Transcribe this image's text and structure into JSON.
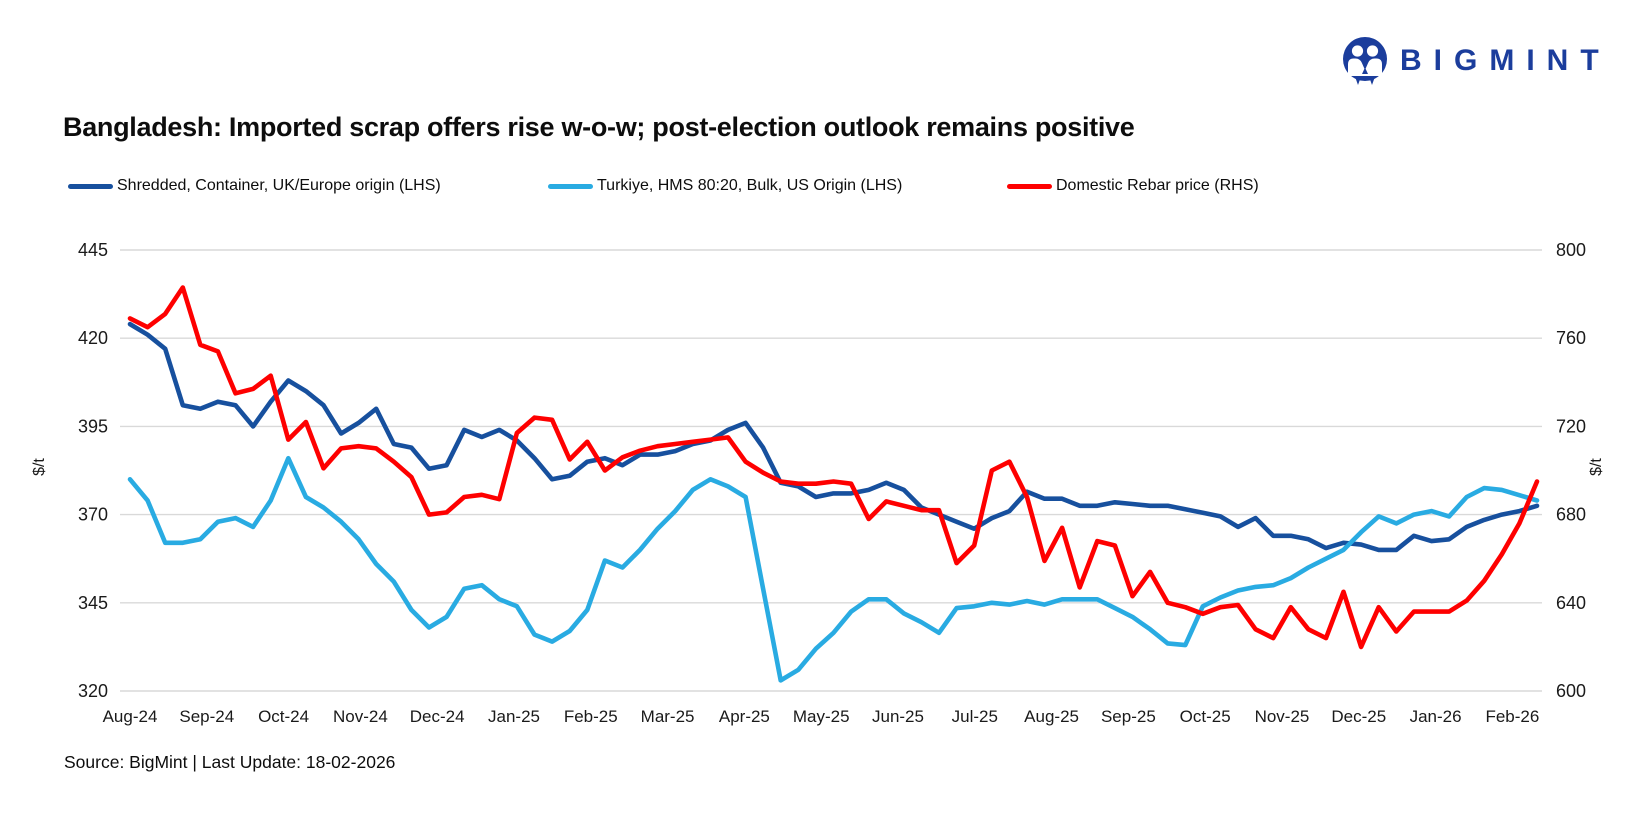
{
  "logo": {
    "brand": "BIGMINT",
    "color": "#1b3d9c"
  },
  "title": "Bangladesh: Imported scrap offers rise w-o-w; post-election outlook remains positive",
  "source_note": "Source: BigMint | Last Update: 18-02-2026",
  "chart_data": {
    "type": "line",
    "title": "Bangladesh: Imported scrap offers rise w-o-w; post-election outlook remains positive",
    "frequency": "weekly",
    "x_month_labels": [
      "Aug-24",
      "Sep-24",
      "Oct-24",
      "Nov-24",
      "Dec-24",
      "Jan-25",
      "Feb-25",
      "Mar-25",
      "Apr-25",
      "May-25",
      "Jun-25",
      "Jul-25",
      "Aug-25",
      "Sep-25",
      "Oct-25",
      "Nov-25",
      "Dec-25",
      "Jan-26",
      "Feb-26"
    ],
    "left_axis": {
      "label": "$/t",
      "ticks": [
        445,
        420,
        395,
        370,
        345,
        320
      ],
      "min": 320,
      "max": 445
    },
    "right_axis": {
      "label": "$/t",
      "ticks": [
        800,
        760,
        720,
        680,
        640,
        600
      ],
      "min": 600,
      "max": 800
    },
    "grid": true,
    "legend_position": "top",
    "grid_color": "#d9d9d9",
    "series": [
      {
        "name": "Shredded, Container, UK/Europe origin (LHS)",
        "axis": "left",
        "color": "#17509e",
        "values": [
          424,
          421,
          417,
          401,
          400,
          402,
          401,
          395,
          402,
          408,
          405,
          401,
          393,
          396,
          400,
          390,
          389,
          383,
          384,
          394,
          392,
          394,
          391,
          386,
          380,
          381,
          385,
          386,
          384,
          387,
          387,
          388,
          390,
          391,
          394,
          396,
          389,
          379,
          378,
          375,
          376,
          376,
          377,
          379,
          377,
          372,
          370,
          368,
          366,
          369,
          371,
          376.5,
          374.5,
          374.5,
          372.5,
          372.5,
          373.5,
          373,
          372.5,
          372.5,
          371.5,
          370.5,
          369.5,
          366.5,
          369,
          364,
          364,
          363,
          360.5,
          362,
          361.5,
          360,
          360,
          364,
          362.5,
          363,
          366.5,
          368.5,
          370,
          371,
          372.5
        ]
      },
      {
        "name": "Turkiye, HMS 80:20, Bulk, US Origin (LHS)",
        "axis": "left",
        "color": "#29abe2",
        "values": [
          380,
          374,
          362,
          362,
          363,
          368,
          369,
          366.5,
          374,
          386,
          375,
          372,
          368,
          363,
          356,
          351,
          343,
          338,
          341,
          349,
          350,
          346,
          344,
          336,
          334,
          337,
          343,
          357,
          355,
          360,
          366,
          371,
          377,
          380,
          378,
          375,
          349,
          323,
          326,
          332,
          336.5,
          342.5,
          346,
          346,
          342,
          339.5,
          336.5,
          343.5,
          344,
          345,
          344.5,
          345.5,
          344.5,
          346,
          346,
          346,
          343.5,
          341,
          337.5,
          333.5,
          333,
          344,
          346.5,
          348.5,
          349.5,
          350,
          352,
          355,
          357.5,
          360,
          365,
          369.5,
          367.5,
          370,
          371,
          369.5,
          375,
          377.5,
          377,
          375.5,
          374
        ]
      },
      {
        "name": "Domestic Rebar price (RHS)",
        "axis": "right",
        "color": "#fe0000",
        "values": [
          769,
          765,
          771,
          783,
          757,
          754,
          735,
          737,
          743,
          714,
          722,
          701,
          710,
          711,
          710,
          704,
          697,
          680,
          681,
          688,
          689,
          687,
          717,
          724,
          723,
          705,
          713,
          700,
          706,
          709,
          711,
          712,
          713,
          714,
          715,
          704,
          699,
          695,
          694,
          694,
          695,
          694,
          678,
          686,
          684,
          682,
          682,
          658,
          666,
          700,
          704,
          688,
          659,
          674,
          647,
          668,
          666,
          643,
          654,
          640,
          638,
          635,
          638,
          639,
          628,
          624,
          638,
          628,
          624,
          645,
          620,
          638,
          627,
          636,
          636,
          636,
          641,
          650,
          662,
          676,
          695
        ]
      }
    ]
  }
}
